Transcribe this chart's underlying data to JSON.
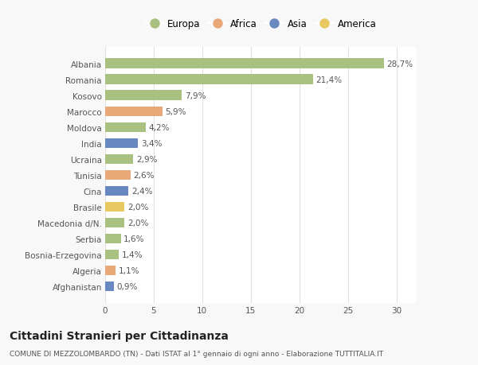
{
  "categories": [
    "Albania",
    "Romania",
    "Kosovo",
    "Marocco",
    "Moldova",
    "India",
    "Ucraina",
    "Tunisia",
    "Cina",
    "Brasile",
    "Macedonia d/N.",
    "Serbia",
    "Bosnia-Erzegovina",
    "Algeria",
    "Afghanistan"
  ],
  "values": [
    28.7,
    21.4,
    7.9,
    5.9,
    4.2,
    3.4,
    2.9,
    2.6,
    2.4,
    2.0,
    2.0,
    1.6,
    1.4,
    1.1,
    0.9
  ],
  "labels": [
    "28,7%",
    "21,4%",
    "7,9%",
    "5,9%",
    "4,2%",
    "3,4%",
    "2,9%",
    "2,6%",
    "2,4%",
    "2,0%",
    "2,0%",
    "1,6%",
    "1,4%",
    "1,1%",
    "0,9%"
  ],
  "continents": [
    "Europa",
    "Europa",
    "Europa",
    "Africa",
    "Europa",
    "Asia",
    "Europa",
    "Africa",
    "Asia",
    "America",
    "Europa",
    "Europa",
    "Europa",
    "Africa",
    "Asia"
  ],
  "continent_colors": {
    "Europa": "#a8c080",
    "Africa": "#e8a878",
    "Asia": "#6888c0",
    "America": "#e8c860"
  },
  "legend_order": [
    "Europa",
    "Africa",
    "Asia",
    "America"
  ],
  "title": "Cittadini Stranieri per Cittadinanza",
  "subtitle": "COMUNE DI MEZZOLOMBARDO (TN) - Dati ISTAT al 1° gennaio di ogni anno - Elaborazione TUTTITALIA.IT",
  "xlim": [
    0,
    32
  ],
  "xticks": [
    0,
    5,
    10,
    15,
    20,
    25,
    30
  ],
  "bg_color": "#f8f8f8",
  "plot_bg_color": "#ffffff",
  "grid_color": "#e0e0e0",
  "bar_height": 0.62,
  "label_fontsize": 7.5,
  "tick_fontsize": 7.5,
  "title_fontsize": 10,
  "subtitle_fontsize": 6.5
}
